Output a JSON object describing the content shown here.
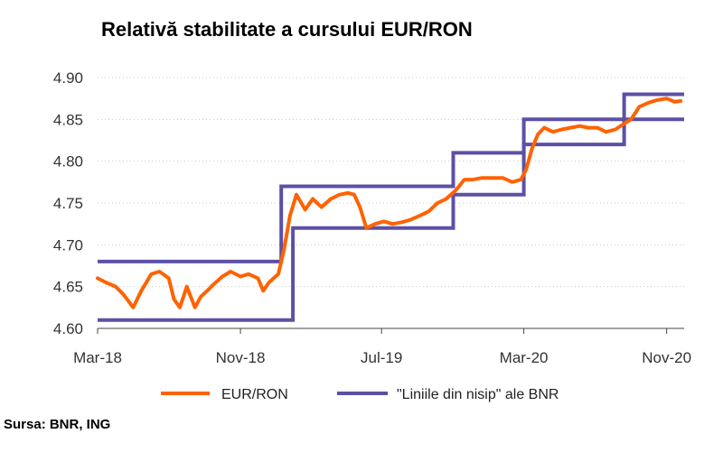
{
  "chart_data": {
    "type": "line",
    "title": "Relativă stabilitate a cursului EUR/RON",
    "source": "Sursa: BNR, ING",
    "y_ticks": [
      "4.90",
      "4.85",
      "4.80",
      "4.75",
      "4.70",
      "4.65",
      "4.60"
    ],
    "ylim": [
      4.6,
      4.9
    ],
    "x_ticks": [
      "Mar-18",
      "Nov-18",
      "Jul-19",
      "Mar-20",
      "Nov-20"
    ],
    "x_tick_dates": [
      "2018-03",
      "2018-11",
      "2019-07",
      "2020-03",
      "2020-11"
    ],
    "grid": "horizontal dotted",
    "legend": "bottom",
    "series": [
      {
        "name": "EUR/RON",
        "color": "#FF6200",
        "points": [
          [
            "2018-03-01",
            4.66
          ],
          [
            "2018-03-15",
            4.655
          ],
          [
            "2018-04-01",
            4.65
          ],
          [
            "2018-04-15",
            4.64
          ],
          [
            "2018-05-01",
            4.625
          ],
          [
            "2018-05-15",
            4.645
          ],
          [
            "2018-06-01",
            4.665
          ],
          [
            "2018-06-15",
            4.668
          ],
          [
            "2018-07-01",
            4.66
          ],
          [
            "2018-07-10",
            4.635
          ],
          [
            "2018-07-20",
            4.625
          ],
          [
            "2018-08-01",
            4.65
          ],
          [
            "2018-08-15",
            4.625
          ],
          [
            "2018-08-25",
            4.638
          ],
          [
            "2018-09-05",
            4.645
          ],
          [
            "2018-09-15",
            4.652
          ],
          [
            "2018-10-01",
            4.662
          ],
          [
            "2018-10-15",
            4.668
          ],
          [
            "2018-11-01",
            4.662
          ],
          [
            "2018-11-15",
            4.665
          ],
          [
            "2018-12-01",
            4.66
          ],
          [
            "2018-12-10",
            4.645
          ],
          [
            "2018-12-20",
            4.655
          ],
          [
            "2019-01-05",
            4.665
          ],
          [
            "2019-01-15",
            4.695
          ],
          [
            "2019-01-25",
            4.735
          ],
          [
            "2019-02-05",
            4.76
          ],
          [
            "2019-02-20",
            4.742
          ],
          [
            "2019-03-05",
            4.755
          ],
          [
            "2019-03-20",
            4.745
          ],
          [
            "2019-04-05",
            4.755
          ],
          [
            "2019-04-20",
            4.76
          ],
          [
            "2019-05-05",
            4.762
          ],
          [
            "2019-05-15",
            4.76
          ],
          [
            "2019-05-25",
            4.745
          ],
          [
            "2019-06-05",
            4.72
          ],
          [
            "2019-06-20",
            4.725
          ],
          [
            "2019-07-05",
            4.728
          ],
          [
            "2019-07-20",
            4.725
          ],
          [
            "2019-08-05",
            4.727
          ],
          [
            "2019-08-20",
            4.73
          ],
          [
            "2019-09-05",
            4.735
          ],
          [
            "2019-09-20",
            4.74
          ],
          [
            "2019-10-05",
            4.75
          ],
          [
            "2019-10-20",
            4.755
          ],
          [
            "2019-11-05",
            4.765
          ],
          [
            "2019-11-20",
            4.778
          ],
          [
            "2019-12-05",
            4.778
          ],
          [
            "2019-12-20",
            4.78
          ],
          [
            "2020-01-10",
            4.78
          ],
          [
            "2020-01-25",
            4.78
          ],
          [
            "2020-02-10",
            4.775
          ],
          [
            "2020-02-25",
            4.778
          ],
          [
            "2020-03-05",
            4.79
          ],
          [
            "2020-03-15",
            4.815
          ],
          [
            "2020-03-25",
            4.832
          ],
          [
            "2020-04-05",
            4.84
          ],
          [
            "2020-04-20",
            4.835
          ],
          [
            "2020-05-05",
            4.838
          ],
          [
            "2020-05-20",
            4.84
          ],
          [
            "2020-06-05",
            4.842
          ],
          [
            "2020-06-20",
            4.84
          ],
          [
            "2020-07-05",
            4.84
          ],
          [
            "2020-07-20",
            4.835
          ],
          [
            "2020-08-05",
            4.838
          ],
          [
            "2020-08-20",
            4.845
          ],
          [
            "2020-09-01",
            4.85
          ],
          [
            "2020-09-15",
            4.865
          ],
          [
            "2020-10-01",
            4.87
          ],
          [
            "2020-10-15",
            4.873
          ],
          [
            "2020-11-01",
            4.875
          ],
          [
            "2020-11-15",
            4.871
          ],
          [
            "2020-11-25",
            4.872
          ]
        ]
      },
      {
        "name": "\"Liniile din nisip\" ale BNR",
        "color": "#5C50A6",
        "upper": [
          [
            "2018-03-01",
            4.68
          ],
          [
            "2019-01-10",
            4.68
          ],
          [
            "2019-01-10",
            4.77
          ],
          [
            "2019-11-01",
            4.77
          ],
          [
            "2019-11-01",
            4.81
          ],
          [
            "2020-03-01",
            4.81
          ],
          [
            "2020-03-01",
            4.85
          ],
          [
            "2020-08-20",
            4.85
          ],
          [
            "2020-08-20",
            4.88
          ],
          [
            "2020-12-01",
            4.88
          ]
        ],
        "lower": [
          [
            "2018-03-01",
            4.61
          ],
          [
            "2019-01-30",
            4.61
          ],
          [
            "2019-01-30",
            4.72
          ],
          [
            "2019-11-01",
            4.72
          ],
          [
            "2019-11-01",
            4.76
          ],
          [
            "2020-03-01",
            4.76
          ],
          [
            "2020-03-01",
            4.82
          ],
          [
            "2020-08-20",
            4.82
          ],
          [
            "2020-08-20",
            4.85
          ],
          [
            "2020-12-01",
            4.85
          ]
        ]
      }
    ]
  }
}
